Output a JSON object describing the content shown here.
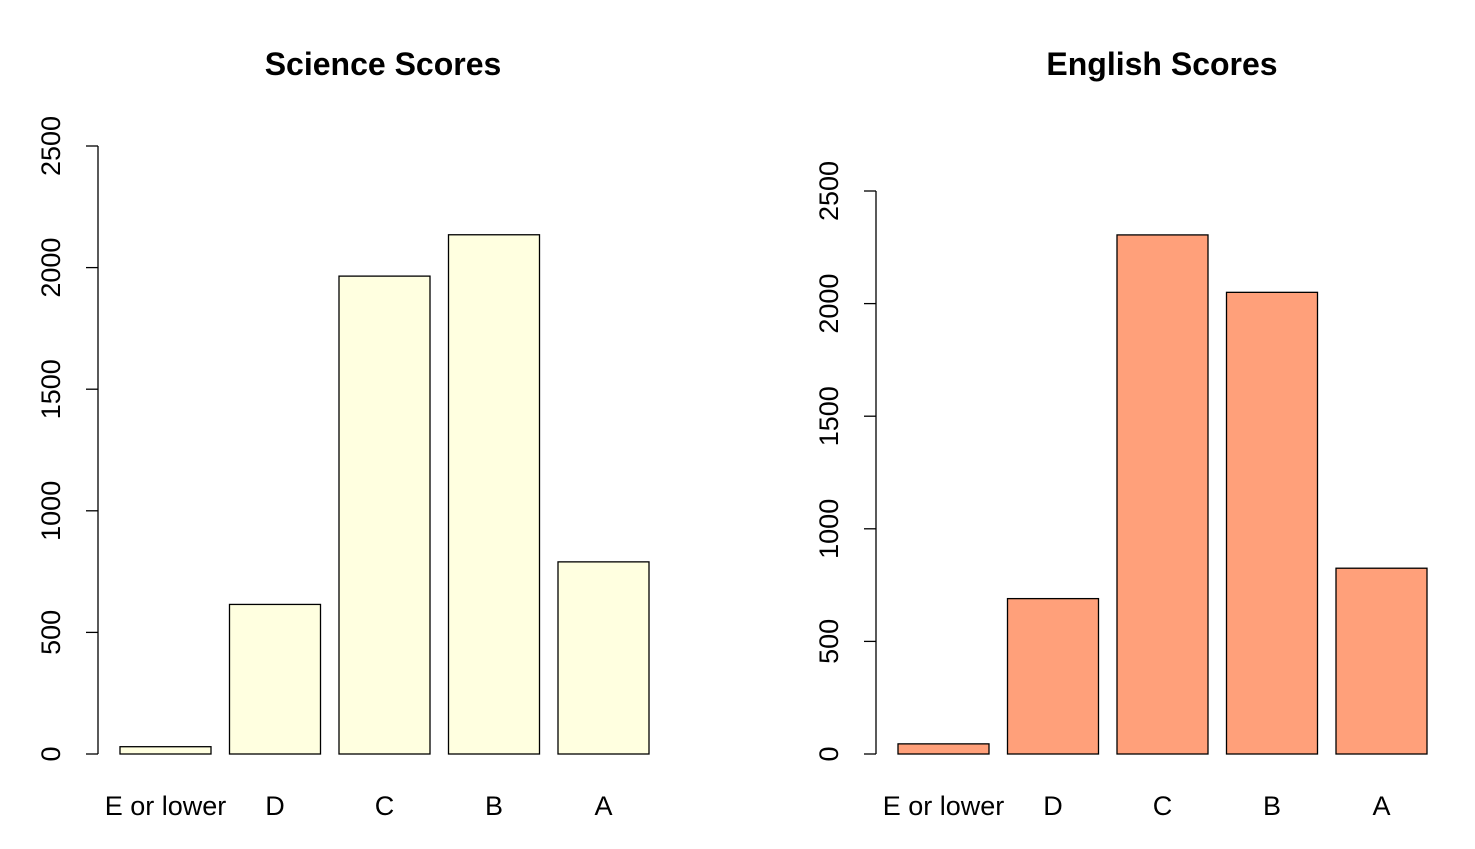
{
  "chart_data": [
    {
      "type": "bar",
      "title": "Science Scores",
      "categories": [
        "E or lower",
        "D",
        "C",
        "B",
        "A"
      ],
      "values": [
        30,
        615,
        1965,
        2135,
        790
      ],
      "yticks": [
        0,
        500,
        1000,
        1500,
        2000,
        2500
      ],
      "ylim": [
        0,
        2500
      ],
      "xlabel": "",
      "ylabel": "",
      "color": "#FFFFE0",
      "grid": false
    },
    {
      "type": "bar",
      "title": "English Scores",
      "categories": [
        "E or lower",
        "D",
        "C",
        "B",
        "A"
      ],
      "values": [
        45,
        690,
        2305,
        2050,
        825
      ],
      "yticks": [
        0,
        500,
        1000,
        1500,
        2000,
        2500
      ],
      "ylim": [
        0,
        2500
      ],
      "xlabel": "",
      "ylabel": "",
      "color": "#FFA07A",
      "grid": false
    }
  ]
}
